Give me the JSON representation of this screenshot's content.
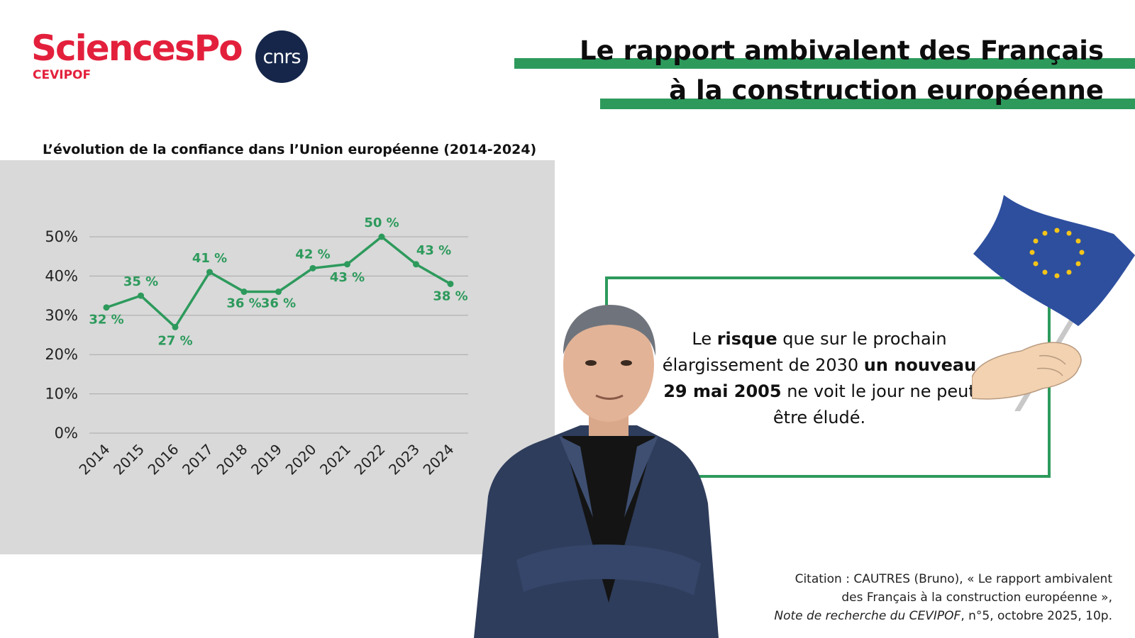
{
  "header": {
    "logo_sciencespo": "SciencesPo",
    "logo_cevipof": "CEVIPOF",
    "logo_cnrs": "cnrs",
    "title_line1": "Le rapport ambivalent des Français",
    "title_line2": "à la construction européenne",
    "accent_color": "#2d9a5c"
  },
  "chart_data": {
    "type": "line",
    "title": "L’évolution de la confiance dans l’Union européenne (2014-2024)",
    "categories": [
      "2014",
      "2015",
      "2016",
      "2017",
      "2018",
      "2019",
      "2020",
      "2021",
      "2022",
      "2023",
      "2024"
    ],
    "series": [
      {
        "values": [
          32,
          35,
          27,
          41,
          36,
          36,
          42,
          43,
          50,
          43,
          38
        ],
        "color": "#2d9a5c"
      }
    ],
    "data_labels": [
      "32 %",
      "35 %",
      "27 %",
      "41 %",
      "36 %",
      "36 %",
      "42 %",
      "43 %",
      "50 %",
      "43 %",
      "38 %"
    ],
    "y_ticks": [
      0,
      10,
      20,
      30,
      40,
      50
    ],
    "y_tick_labels": [
      "0%",
      "10%",
      "20%",
      "30%",
      "40%",
      "50%"
    ],
    "ylim": [
      0,
      50
    ],
    "grid": true,
    "background_color": "#d9d9d9"
  },
  "quote": {
    "part1": "Le ",
    "bold1": "risque",
    "part2": " que sur le prochain élargissement de 2030 ",
    "bold2": "un nouveau 29 mai 2005",
    "part3": " ne voit le jour ne peut être éludé."
  },
  "citation": {
    "line1": "Citation : CAUTRES (Bruno), « Le rapport ambivalent",
    "line2": "des Français à la construction européenne »,",
    "line3_italic": "Note de recherche du CEVIPOF",
    "line3_rest": ", n°5, octobre 2025, 10p."
  },
  "icons": {
    "flag": "eu-flag-icon",
    "portrait": "portrait-photo"
  }
}
